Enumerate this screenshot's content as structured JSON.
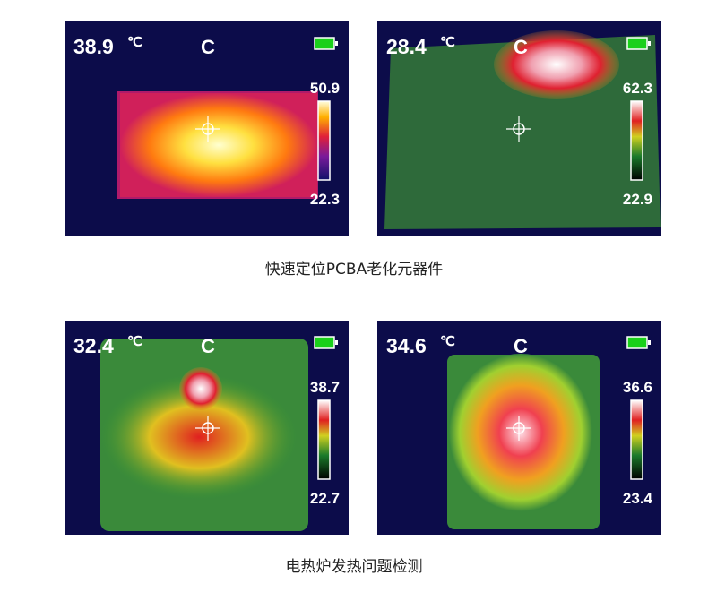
{
  "groups": [
    {
      "caption": "快速定位PCBA老化元器件",
      "panels": [
        {
          "temp": "38.9",
          "unit": "℃",
          "mode": "C",
          "max": "50.9",
          "min": "22.3"
        },
        {
          "temp": "28.4",
          "unit": "℃",
          "mode": "C",
          "max": "62.3",
          "min": "22.9"
        }
      ]
    },
    {
      "caption": "电热炉发热问题检测",
      "panels": [
        {
          "temp": "32.4",
          "unit": "℃",
          "mode": "C",
          "max": "38.7",
          "min": "22.7"
        },
        {
          "temp": "34.6",
          "unit": "℃",
          "mode": "C",
          "max": "36.6",
          "min": "23.4"
        }
      ]
    }
  ]
}
